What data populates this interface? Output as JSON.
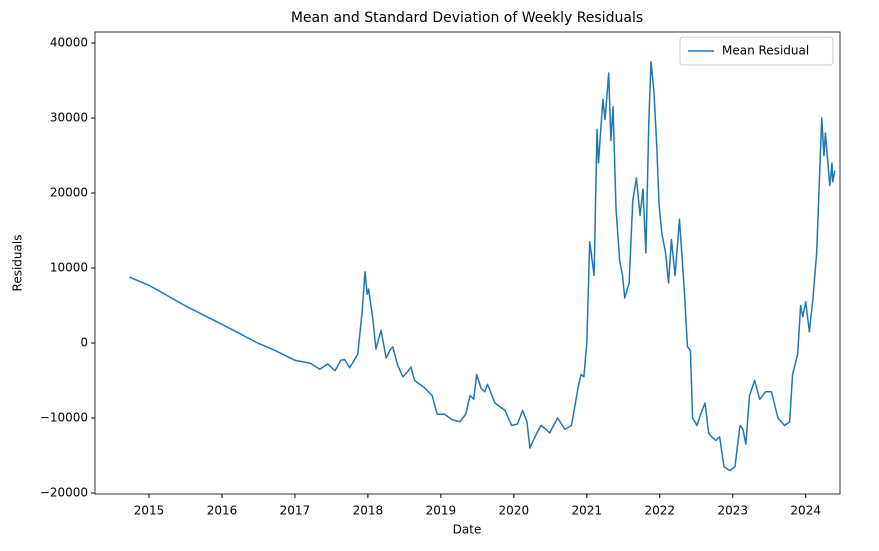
{
  "chart_data": {
    "type": "line",
    "title": "Mean and Standard Deviation of Weekly Residuals",
    "x_label": "Date",
    "y_label": "Residuals",
    "x": [
      2014.73,
      2015.0,
      2015.49,
      2016.0,
      2016.49,
      2016.73,
      2017.0,
      2017.21,
      2017.34,
      2017.45,
      2017.55,
      2017.63,
      2017.68,
      2017.75,
      2017.86,
      2017.92,
      2017.96,
      2017.99,
      2018.01,
      2018.07,
      2018.11,
      2018.18,
      2018.25,
      2018.3,
      2018.34,
      2018.41,
      2018.48,
      2018.53,
      2018.59,
      2018.64,
      2018.78,
      2018.88,
      2018.95,
      2019.05,
      2019.15,
      2019.26,
      2019.34,
      2019.4,
      2019.45,
      2019.49,
      2019.55,
      2019.6,
      2019.64,
      2019.74,
      2019.81,
      2019.88,
      2019.97,
      2020.05,
      2020.12,
      2020.18,
      2020.22,
      2020.29,
      2020.37,
      2020.44,
      2020.49,
      2020.6,
      2020.7,
      2020.79,
      2020.88,
      2020.92,
      2020.96,
      2021.0,
      2021.04,
      2021.1,
      2021.14,
      2021.16,
      2021.22,
      2021.25,
      2021.3,
      2021.33,
      2021.36,
      2021.4,
      2021.45,
      2021.49,
      2021.52,
      2021.58,
      2021.63,
      2021.68,
      2021.73,
      2021.77,
      2021.81,
      2021.85,
      2021.88,
      2021.92,
      2021.96,
      2021.99,
      2022.03,
      2022.08,
      2022.12,
      2022.16,
      2022.21,
      2022.27,
      2022.33,
      2022.38,
      2022.42,
      2022.45,
      2022.51,
      2022.56,
      2022.62,
      2022.67,
      2022.71,
      2022.77,
      2022.82,
      2022.88,
      2022.96,
      2023.03,
      2023.1,
      2023.14,
      2023.18,
      2023.23,
      2023.3,
      2023.37,
      2023.45,
      2023.53,
      2023.62,
      2023.71,
      2023.78,
      2023.82,
      2023.89,
      2023.93,
      2023.96,
      2024.0,
      2024.05,
      2024.1,
      2024.15,
      2024.22,
      2024.25,
      2024.27,
      2024.33,
      2024.36,
      2024.37,
      2024.4
    ],
    "series": [
      {
        "name": "Mean Residual",
        "color": "#1f77b4",
        "values": [
          8800,
          7700,
          5000,
          2500,
          0,
          -1000,
          -2300,
          -2700,
          -3500,
          -2800,
          -3700,
          -2300,
          -2200,
          -3300,
          -1500,
          4000,
          9500,
          6500,
          7200,
          3000,
          -800,
          1700,
          -2000,
          -1000,
          -500,
          -3000,
          -4500,
          -4000,
          -3200,
          -5000,
          -6000,
          -7000,
          -9500,
          -9500,
          -10200,
          -10500,
          -9500,
          -7000,
          -7500,
          -4200,
          -6000,
          -6500,
          -5500,
          -8000,
          -8500,
          -9000,
          -11000,
          -10800,
          -9000,
          -10500,
          -14000,
          -12500,
          -11000,
          -11500,
          -12000,
          -10000,
          -11500,
          -11000,
          -6000,
          -4200,
          -4500,
          0,
          13500,
          9000,
          28500,
          24000,
          32500,
          29800,
          36000,
          27000,
          31500,
          18000,
          11000,
          9000,
          6000,
          8000,
          19000,
          22000,
          17000,
          20500,
          12000,
          29500,
          37500,
          33500,
          26000,
          18500,
          14500,
          12000,
          8000,
          13800,
          9000,
          16500,
          8000,
          -500,
          -1000,
          -10000,
          -11000,
          -9500,
          -8000,
          -12000,
          -12500,
          -13000,
          -12500,
          -16500,
          -17000,
          -16500,
          -11000,
          -11500,
          -13500,
          -7000,
          -5000,
          -7500,
          -6500,
          -6500,
          -10000,
          -11000,
          -10500,
          -4200,
          -1500,
          5000,
          3500,
          5500,
          1500,
          6000,
          12000,
          30000,
          25000,
          28000,
          21000,
          24000,
          21500,
          23000
        ]
      }
    ],
    "xlim": [
      2014.26,
      2024.47
    ],
    "xticks": [
      2015,
      2016,
      2017,
      2018,
      2019,
      2020,
      2021,
      2022,
      2023,
      2024
    ],
    "ylim": [
      -20130,
      41470
    ],
    "yticks": [
      {
        "value": -20000,
        "label": "−20000"
      },
      {
        "value": -10000,
        "label": "−10000"
      },
      0,
      10000,
      20000,
      30000,
      40000
    ],
    "legend": "upper right"
  }
}
